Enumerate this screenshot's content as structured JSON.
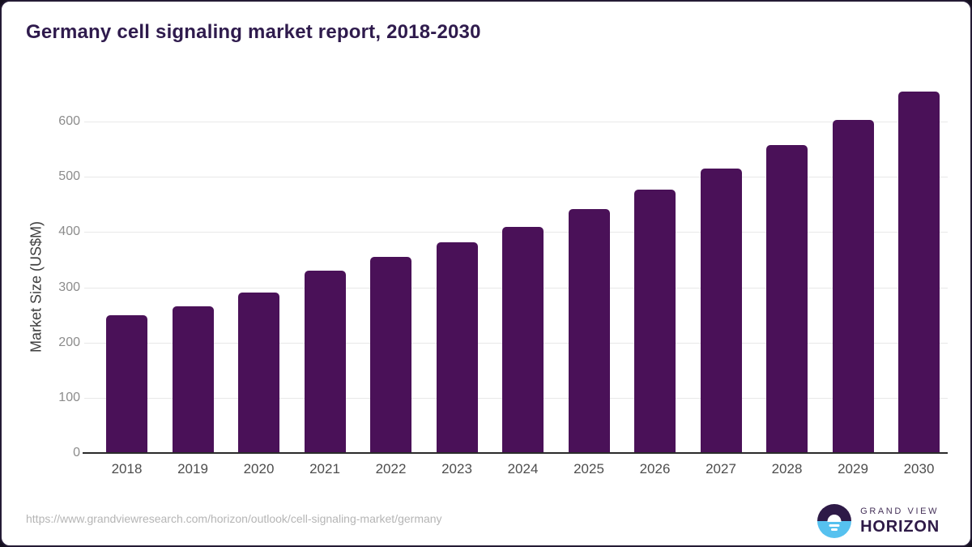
{
  "chart_data": {
    "type": "bar",
    "title": "Germany cell signaling market report, 2018-2030",
    "categories": [
      "2018",
      "2019",
      "2020",
      "2021",
      "2022",
      "2023",
      "2024",
      "2025",
      "2026",
      "2027",
      "2028",
      "2029",
      "2030"
    ],
    "values": [
      250,
      266,
      291,
      330,
      355,
      381,
      410,
      442,
      477,
      515,
      557,
      603,
      654
    ],
    "xlabel": "",
    "ylabel": "Market Size (US$M)",
    "ylim": [
      0,
      600
    ],
    "yticks": [
      0,
      100,
      200,
      300,
      400,
      500,
      600
    ],
    "grid": true,
    "legend": false,
    "bar_color": "#4A1158"
  },
  "colors": {
    "title_text": "#2F1B4D",
    "axis_line": "#2B2B2B",
    "gridline": "#E8E8E8",
    "tick_label": "#8C8C8C",
    "logo_purple": "#2E1A47",
    "logo_blue": "#56C1EF"
  },
  "footer": {
    "source_url": "https://www.grandviewresearch.com/horizon/outlook/cell-signaling-market/germany",
    "logo": {
      "icon": "sunrise-horizon-icon",
      "brand_top": "GRAND VIEW",
      "brand_bottom": "HORIZON"
    }
  }
}
